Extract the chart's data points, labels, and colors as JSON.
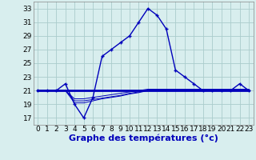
{
  "hours": [
    0,
    1,
    2,
    3,
    4,
    5,
    6,
    7,
    8,
    9,
    10,
    11,
    12,
    13,
    14,
    15,
    16,
    17,
    18,
    19,
    20,
    21,
    22,
    23
  ],
  "temp_main": [
    21,
    21,
    21,
    22,
    19,
    17,
    20,
    26,
    27,
    28,
    29,
    31,
    33,
    32,
    30,
    24,
    23,
    22,
    21,
    21,
    21,
    21,
    22,
    21
  ],
  "temp_flat": [
    21,
    21,
    21,
    21,
    21,
    21,
    21,
    21,
    21,
    21,
    21,
    21,
    21,
    21,
    21,
    21,
    21,
    21,
    21,
    21,
    21,
    21,
    21,
    21
  ],
  "temp_rise1": [
    21,
    21,
    21,
    21,
    19.2,
    19.2,
    19.5,
    19.8,
    20.0,
    20.2,
    20.5,
    20.7,
    21.0,
    21.0,
    21.0,
    21.0,
    21.0,
    21.0,
    21.0,
    21.0,
    21.0,
    21.0,
    21.0,
    21.0
  ],
  "temp_rise2": [
    21,
    21,
    21,
    21,
    19.5,
    19.5,
    19.7,
    19.9,
    20.1,
    20.3,
    20.6,
    20.8,
    21.1,
    21.1,
    21.1,
    21.1,
    21.1,
    21.1,
    21.1,
    21.1,
    21.1,
    21.1,
    21.1,
    21.1
  ],
  "temp_rise3": [
    21,
    21,
    21,
    21,
    19.8,
    19.8,
    20.0,
    20.2,
    20.4,
    20.6,
    20.8,
    21.0,
    21.2,
    21.2,
    21.2,
    21.2,
    21.2,
    21.2,
    21.2,
    21.2,
    21.2,
    21.2,
    21.2,
    21.2
  ],
  "bg_color": "#d8eeee",
  "grid_color": "#aacccc",
  "line_color": "#0000bb",
  "xlabel": "Graphe des températures (°c)",
  "ylabel_ticks": [
    17,
    19,
    21,
    23,
    25,
    27,
    29,
    31,
    33
  ],
  "ylim": [
    16.0,
    34.0
  ],
  "xlim": [
    -0.5,
    23.5
  ],
  "axis_fontsize": 7,
  "tick_fontsize": 6.5,
  "xlabel_fontsize": 8
}
